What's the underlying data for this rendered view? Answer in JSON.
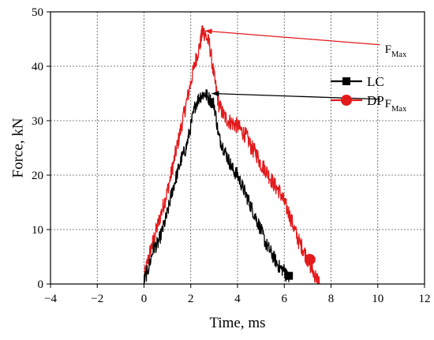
{
  "chart_data": {
    "type": "line",
    "xlabel": "Time, ms",
    "ylabel": "Force, kN",
    "xlim": [
      -4,
      12
    ],
    "ylim": [
      0,
      50
    ],
    "xticks": [
      -4,
      -2,
      0,
      2,
      4,
      6,
      8,
      10,
      12
    ],
    "yticks": [
      0,
      10,
      20,
      30,
      40,
      50
    ],
    "x_tick_labels": [
      "−4",
      "−2",
      "0",
      "2",
      "4",
      "6",
      "8",
      "10",
      "12"
    ],
    "y_tick_labels": [
      "0",
      "10",
      "20",
      "30",
      "40",
      "50"
    ],
    "grid": true,
    "grid_style": "dotted",
    "legend_position": "right",
    "series": [
      {
        "name": "LC",
        "color": "#000000",
        "marker": "square",
        "x": [
          0.0,
          0.2,
          0.4,
          0.6,
          0.8,
          1.0,
          1.2,
          1.4,
          1.6,
          1.8,
          2.0,
          2.2,
          2.4,
          2.6,
          2.8,
          3.0,
          3.2,
          3.4,
          3.6,
          3.8,
          4.0,
          4.2,
          4.4,
          4.6,
          4.8,
          5.0,
          5.2,
          5.4,
          5.6,
          5.8,
          6.0,
          6.1,
          6.2
        ],
        "y": [
          0.5,
          3,
          6.5,
          7.5,
          10,
          13,
          17,
          20,
          23,
          25,
          29,
          33,
          34.5,
          35,
          34,
          33,
          27,
          25,
          23,
          21,
          20,
          18,
          16,
          14,
          12,
          10,
          7.5,
          6,
          4.5,
          3,
          2.5,
          1.5,
          1.5
        ]
      },
      {
        "name": "DP",
        "color": "#e31a1c",
        "marker": "circle",
        "x": [
          0.0,
          0.2,
          0.4,
          0.6,
          0.8,
          1.0,
          1.2,
          1.4,
          1.6,
          1.8,
          2.0,
          2.2,
          2.4,
          2.5,
          2.6,
          2.8,
          3.0,
          3.2,
          3.4,
          3.6,
          3.8,
          4.0,
          4.2,
          4.4,
          4.6,
          4.8,
          5.0,
          5.2,
          5.4,
          5.6,
          5.8,
          6.0,
          6.2,
          6.4,
          6.6,
          6.8,
          7.0,
          7.2,
          7.4,
          7.5
        ],
        "y": [
          1,
          5,
          8,
          11,
          14,
          17,
          21,
          25,
          29,
          33,
          37,
          41,
          44,
          46.5,
          46,
          44,
          38,
          33,
          31,
          30,
          29.5,
          29,
          28,
          27,
          25,
          24,
          22,
          21,
          19.5,
          18,
          17,
          15,
          13,
          10.5,
          8,
          6.5,
          4.5,
          2.5,
          1,
          0
        ]
      }
    ],
    "annotations": [
      {
        "text": "F",
        "subscript": "Max",
        "target": [
          2.5,
          46.5
        ],
        "label_at": [
          10.3,
          42.5
        ]
      },
      {
        "text": "F",
        "subscript": "Max",
        "target": [
          2.8,
          35.0
        ],
        "label_at": [
          10.3,
          32.5
        ]
      }
    ],
    "end_markers": [
      {
        "series": "LC",
        "x": 6.2,
        "y": 1.5
      },
      {
        "series": "DP",
        "x": 7.1,
        "y": 4.5
      }
    ]
  }
}
